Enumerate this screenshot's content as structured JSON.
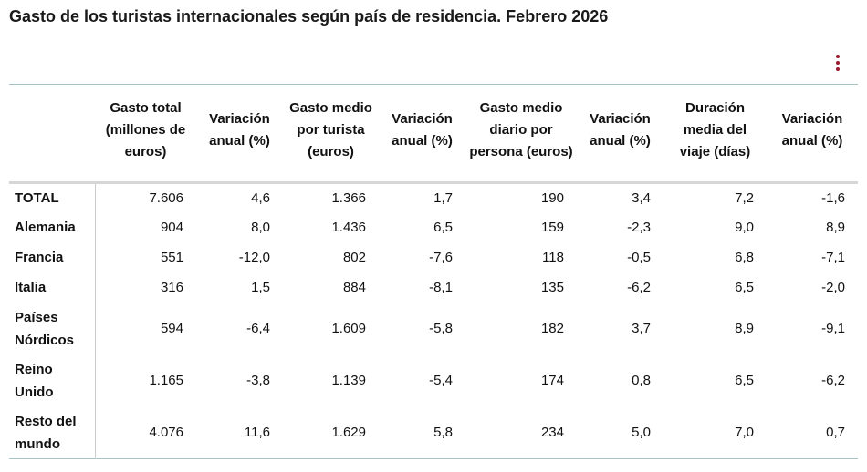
{
  "title": "Gasto de los turistas internacionales según país de residencia. Febrero 2026",
  "menu_icon": "vertical-ellipsis-icon",
  "accent_color": "#9b1c2e",
  "columns": [
    "",
    "Gasto total (millones de euros)",
    "Variación anual (%)",
    "Gasto medio por turista (euros)",
    "Variación anual (%)",
    "Gasto medio diario por persona (euros)",
    "Variación anual (%)",
    "Duración media del viaje (días)",
    "Variación anual (%)"
  ],
  "rows": [
    {
      "label": "TOTAL",
      "values": [
        "7.606",
        "4,6",
        "1.366",
        "1,7",
        "190",
        "3,4",
        "7,2",
        "-1,6"
      ]
    },
    {
      "label": "Alemania",
      "values": [
        "904",
        "8,0",
        "1.436",
        "6,5",
        "159",
        "-2,3",
        "9,0",
        "8,9"
      ]
    },
    {
      "label": "Francia",
      "values": [
        "551",
        "-12,0",
        "802",
        "-7,6",
        "118",
        "-0,5",
        "6,8",
        "-7,1"
      ]
    },
    {
      "label": "Italia",
      "values": [
        "316",
        "1,5",
        "884",
        "-8,1",
        "135",
        "-6,2",
        "6,5",
        "-2,0"
      ]
    },
    {
      "label": "Países Nórdicos",
      "values": [
        "594",
        "-6,4",
        "1.609",
        "-5,8",
        "182",
        "3,7",
        "8,9",
        "-9,1"
      ]
    },
    {
      "label": "Reino Unido",
      "values": [
        "1.165",
        "-3,8",
        "1.139",
        "-5,4",
        "174",
        "0,8",
        "6,5",
        "-6,2"
      ]
    },
    {
      "label": "Resto del mundo",
      "values": [
        "4.076",
        "11,6",
        "1.629",
        "5,8",
        "234",
        "5,0",
        "7,0",
        "0,7"
      ]
    }
  ]
}
